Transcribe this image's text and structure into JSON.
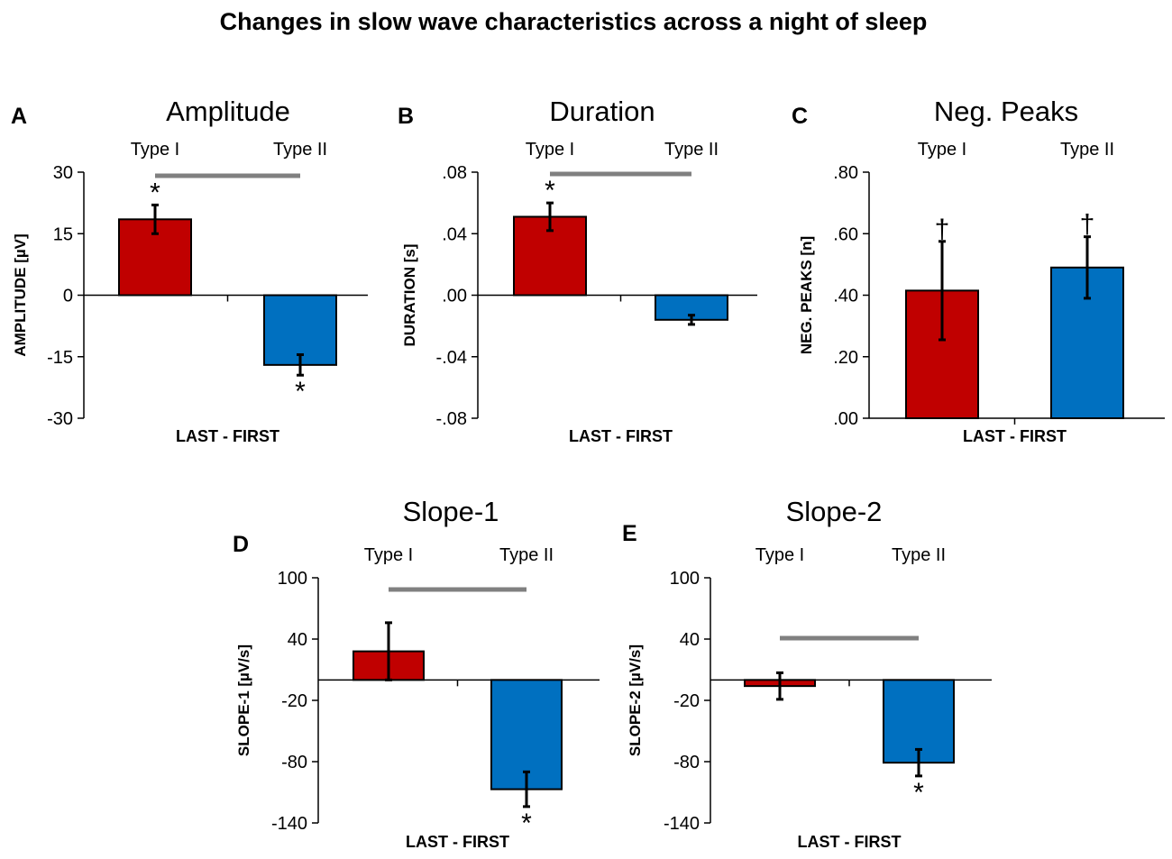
{
  "figure_title": "Changes in slow wave characteristics across a night of sleep",
  "colors": {
    "type1": "#c00000",
    "type2": "#0070c0",
    "significance_bar": "#808080"
  },
  "chart_data": [
    {
      "type": "bar",
      "panel": "A",
      "title": "Amplitude",
      "categories": [
        "Type I",
        "Type II"
      ],
      "values": [
        18.5,
        -17
      ],
      "errors": [
        3.5,
        2.5
      ],
      "markers": [
        "*",
        "*"
      ],
      "comparison_bar": true,
      "ylim": [
        -30,
        30
      ],
      "yticks": [
        30,
        15,
        0,
        -15,
        -30
      ],
      "ytick_labels": [
        "30",
        "15",
        "0",
        "-15",
        "-30"
      ],
      "ylabel": "AMPLITUDE [µV]",
      "xlabel": "LAST - FIRST"
    },
    {
      "type": "bar",
      "panel": "B",
      "title": "Duration",
      "categories": [
        "Type I",
        "Type II"
      ],
      "values": [
        0.051,
        -0.016
      ],
      "errors": [
        0.009,
        0.003
      ],
      "markers": [
        "*",
        ""
      ],
      "comparison_bar": true,
      "ylim": [
        -0.08,
        0.08
      ],
      "yticks": [
        0.08,
        0.04,
        0,
        -0.04,
        -0.08
      ],
      "ytick_labels": [
        ".08",
        ".04",
        ".00",
        "-.04",
        "-.08"
      ],
      "ylabel": "DURATION [s]",
      "xlabel": "LAST - FIRST"
    },
    {
      "type": "bar",
      "panel": "C",
      "title": "Neg. Peaks",
      "categories": [
        "Type I",
        "Type II"
      ],
      "values": [
        0.415,
        0.49
      ],
      "errors": [
        0.16,
        0.1
      ],
      "markers": [
        "†",
        "†"
      ],
      "comparison_bar": false,
      "ylim": [
        0,
        0.8
      ],
      "yticks": [
        0.8,
        0.6,
        0.4,
        0.2,
        0
      ],
      "ytick_labels": [
        ".80",
        ".60",
        ".40",
        ".20",
        ".00"
      ],
      "ylabel": "NEG. PEAKS [n]",
      "xlabel": "LAST - FIRST"
    },
    {
      "type": "bar",
      "panel": "D",
      "title": "Slope-1",
      "categories": [
        "Type I",
        "Type II"
      ],
      "values": [
        28,
        -107
      ],
      "errors": [
        28,
        17
      ],
      "markers": [
        "",
        "*"
      ],
      "comparison_bar": true,
      "ylim": [
        -140,
        100
      ],
      "yticks": [
        100,
        40,
        -20,
        -80,
        -140
      ],
      "ytick_labels": [
        "100",
        "40",
        "-20",
        "-80",
        "-140"
      ],
      "ylabel": "SLOPE-1 [µV/s]",
      "xlabel": "LAST - FIRST"
    },
    {
      "type": "bar",
      "panel": "E",
      "title": "Slope-2",
      "categories": [
        "Type I",
        "Type II"
      ],
      "values": [
        -6,
        -81
      ],
      "errors": [
        13,
        13
      ],
      "markers": [
        "",
        "*"
      ],
      "comparison_bar": true,
      "ylim": [
        -140,
        100
      ],
      "yticks": [
        100,
        40,
        -20,
        -80,
        -140
      ],
      "ytick_labels": [
        "100",
        "40",
        "-20",
        "-80",
        "-140"
      ],
      "ylabel": "SLOPE-2 [µV/s]",
      "xlabel": "LAST - FIRST"
    }
  ]
}
